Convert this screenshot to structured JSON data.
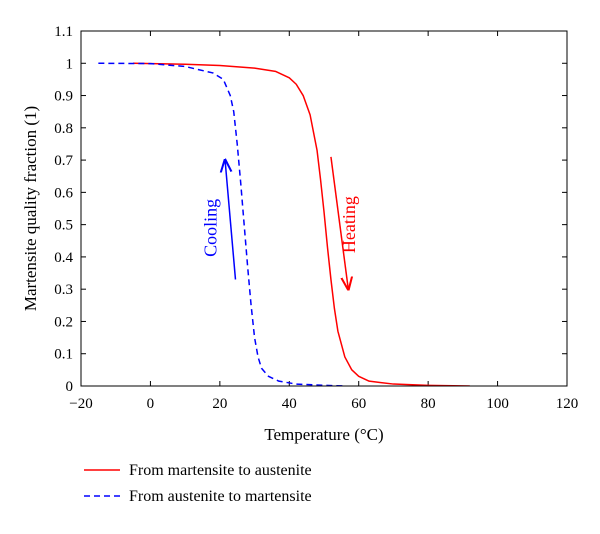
{
  "chart_data": {
    "type": "line",
    "title": "",
    "xlabel": "Temperature (°C)",
    "ylabel": "Martensite quality fraction (1)",
    "xlim": [
      -20,
      120
    ],
    "ylim": [
      0,
      1.1
    ],
    "x_ticks": [
      "−20",
      "0",
      "20",
      "40",
      "60",
      "80",
      "100",
      "120"
    ],
    "x_tick_values": [
      -20,
      0,
      20,
      40,
      60,
      80,
      100,
      120
    ],
    "y_ticks": [
      "0",
      "0.1",
      "0.2",
      "0.3",
      "0.4",
      "0.5",
      "0.6",
      "0.7",
      "0.8",
      "0.9",
      "1",
      "1.1"
    ],
    "y_tick_values": [
      0,
      0.1,
      0.2,
      0.3,
      0.4,
      0.5,
      0.6,
      0.7,
      0.8,
      0.9,
      1.0,
      1.1
    ],
    "grid": false,
    "legend_position": "below",
    "series": [
      {
        "name": "From martensite to austenite",
        "color": "#ff0000",
        "style": "solid",
        "x": [
          -5,
          10,
          20,
          30,
          36,
          40,
          42,
          44,
          46,
          48,
          49,
          50,
          51,
          52,
          53,
          54,
          56,
          58,
          60,
          63,
          70,
          80,
          92
        ],
        "y": [
          1.0,
          0.997,
          0.993,
          0.985,
          0.975,
          0.955,
          0.935,
          0.9,
          0.84,
          0.73,
          0.64,
          0.54,
          0.43,
          0.33,
          0.24,
          0.17,
          0.09,
          0.05,
          0.03,
          0.015,
          0.006,
          0.002,
          0.0
        ]
      },
      {
        "name": "From austenite to martensite",
        "color": "#0000ff",
        "style": "dashed",
        "x": [
          -15,
          0,
          10,
          18,
          21,
          23,
          24,
          25,
          26,
          27,
          28,
          29,
          30,
          31,
          32,
          34,
          37,
          42,
          50,
          56
        ],
        "y": [
          1.0,
          0.999,
          0.99,
          0.97,
          0.95,
          0.9,
          0.85,
          0.75,
          0.63,
          0.5,
          0.37,
          0.25,
          0.15,
          0.09,
          0.055,
          0.03,
          0.015,
          0.006,
          0.002,
          0.0
        ]
      }
    ],
    "annotations": [
      {
        "text": "Cooling",
        "color": "#0000ff",
        "x": 19,
        "y": 0.49,
        "rotation": -90,
        "arrow": {
          "from": [
            24.5,
            0.33
          ],
          "to": [
            21.5,
            0.7
          ]
        }
      },
      {
        "text": "Heating",
        "color": "#ff0000",
        "x": 59,
        "y": 0.5,
        "rotation": -90,
        "arrow": {
          "from": [
            52,
            0.71
          ],
          "to": [
            57,
            0.3
          ]
        }
      }
    ]
  }
}
